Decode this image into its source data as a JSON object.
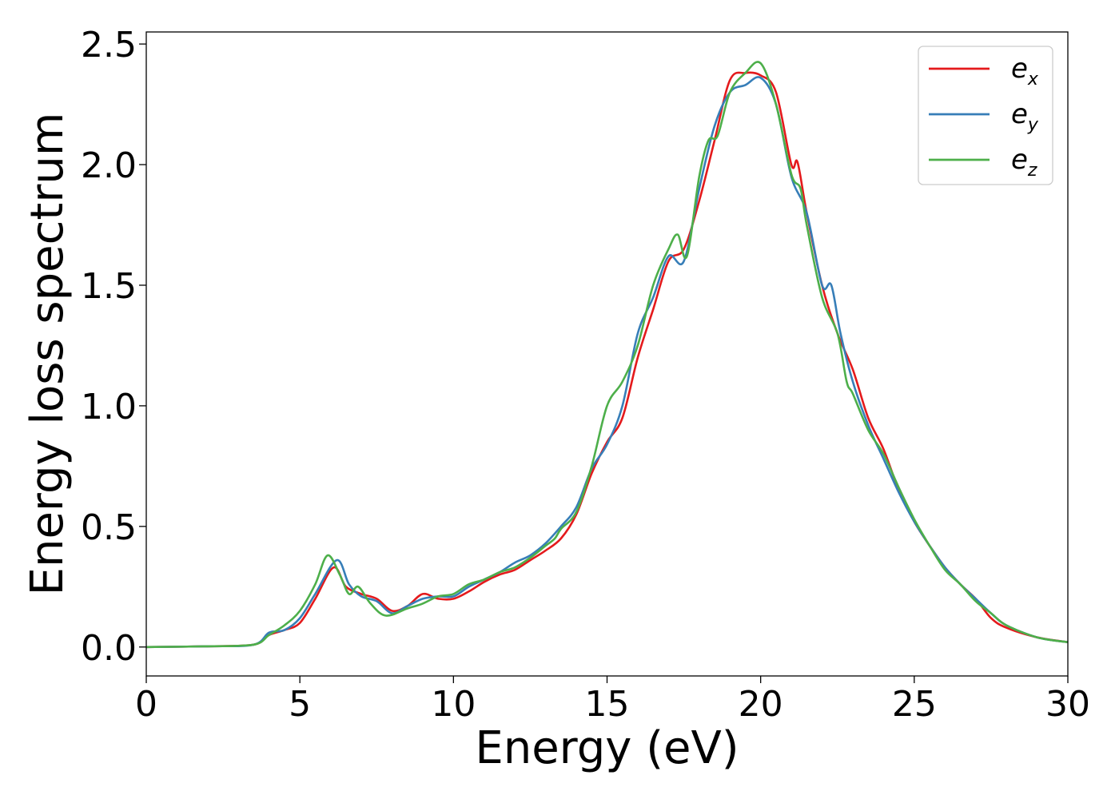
{
  "chart_data": {
    "type": "line",
    "title": "",
    "xlabel": "Energy (eV)",
    "ylabel": "Energy loss spectrum",
    "xlim": [
      0,
      30
    ],
    "ylim": [
      -0.12,
      2.55
    ],
    "x_ticks": [
      "0",
      "5",
      "10",
      "15",
      "20",
      "25",
      "30"
    ],
    "y_ticks": [
      "0.0",
      "0.5",
      "1.0",
      "1.5",
      "2.0",
      "2.5"
    ],
    "grid": false,
    "legend_position": "top-right",
    "series": [
      {
        "name": "e_x",
        "legend_main": "e",
        "legend_sub": "x",
        "color": "#e41a1c",
        "points": [
          [
            0,
            0
          ],
          [
            2,
            0.003
          ],
          [
            3.5,
            0.01
          ],
          [
            4,
            0.05
          ],
          [
            4.5,
            0.07
          ],
          [
            5,
            0.1
          ],
          [
            5.5,
            0.2
          ],
          [
            6.1,
            0.33
          ],
          [
            6.5,
            0.25
          ],
          [
            7,
            0.22
          ],
          [
            7.5,
            0.2
          ],
          [
            8,
            0.15
          ],
          [
            8.5,
            0.17
          ],
          [
            9,
            0.22
          ],
          [
            9.5,
            0.2
          ],
          [
            10,
            0.2
          ],
          [
            10.5,
            0.23
          ],
          [
            11,
            0.27
          ],
          [
            11.5,
            0.3
          ],
          [
            12,
            0.32
          ],
          [
            12.5,
            0.36
          ],
          [
            13,
            0.4
          ],
          [
            13.5,
            0.45
          ],
          [
            14,
            0.55
          ],
          [
            14.5,
            0.72
          ],
          [
            15,
            0.85
          ],
          [
            15.5,
            0.95
          ],
          [
            16,
            1.2
          ],
          [
            16.5,
            1.4
          ],
          [
            17,
            1.6
          ],
          [
            17.5,
            1.65
          ],
          [
            18,
            1.85
          ],
          [
            18.5,
            2.1
          ],
          [
            19,
            2.35
          ],
          [
            19.5,
            2.38
          ],
          [
            20,
            2.37
          ],
          [
            20.5,
            2.3
          ],
          [
            21,
            2.0
          ],
          [
            21.2,
            2.01
          ],
          [
            21.5,
            1.8
          ],
          [
            22,
            1.5
          ],
          [
            22.5,
            1.3
          ],
          [
            23,
            1.15
          ],
          [
            23.5,
            0.95
          ],
          [
            24,
            0.82
          ],
          [
            24.5,
            0.65
          ],
          [
            25,
            0.52
          ],
          [
            25.5,
            0.42
          ],
          [
            26,
            0.33
          ],
          [
            26.5,
            0.26
          ],
          [
            27,
            0.2
          ],
          [
            27.5,
            0.12
          ],
          [
            28,
            0.08
          ],
          [
            29,
            0.04
          ],
          [
            30,
            0.02
          ]
        ]
      },
      {
        "name": "e_y",
        "legend_main": "e",
        "legend_sub": "y",
        "color": "#377eb8",
        "points": [
          [
            0,
            0
          ],
          [
            2,
            0.003
          ],
          [
            3.5,
            0.01
          ],
          [
            4,
            0.06
          ],
          [
            4.5,
            0.07
          ],
          [
            5,
            0.12
          ],
          [
            5.5,
            0.22
          ],
          [
            6.2,
            0.36
          ],
          [
            6.6,
            0.26
          ],
          [
            7,
            0.21
          ],
          [
            7.5,
            0.19
          ],
          [
            8,
            0.14
          ],
          [
            8.5,
            0.17
          ],
          [
            9,
            0.2
          ],
          [
            9.5,
            0.21
          ],
          [
            10,
            0.21
          ],
          [
            10.5,
            0.25
          ],
          [
            11,
            0.28
          ],
          [
            11.5,
            0.31
          ],
          [
            12,
            0.35
          ],
          [
            12.5,
            0.38
          ],
          [
            13,
            0.43
          ],
          [
            13.5,
            0.5
          ],
          [
            14,
            0.58
          ],
          [
            14.5,
            0.74
          ],
          [
            15,
            0.84
          ],
          [
            15.5,
            1.0
          ],
          [
            16,
            1.3
          ],
          [
            16.5,
            1.45
          ],
          [
            17,
            1.62
          ],
          [
            17.5,
            1.6
          ],
          [
            18,
            1.9
          ],
          [
            18.5,
            2.16
          ],
          [
            19,
            2.3
          ],
          [
            19.5,
            2.33
          ],
          [
            20,
            2.36
          ],
          [
            20.5,
            2.25
          ],
          [
            21,
            1.95
          ],
          [
            21.5,
            1.8
          ],
          [
            22,
            1.5
          ],
          [
            22.3,
            1.5
          ],
          [
            22.6,
            1.3
          ],
          [
            23,
            1.1
          ],
          [
            23.5,
            0.92
          ],
          [
            24,
            0.78
          ],
          [
            24.5,
            0.64
          ],
          [
            25,
            0.52
          ],
          [
            25.5,
            0.42
          ],
          [
            26,
            0.33
          ],
          [
            26.5,
            0.26
          ],
          [
            27,
            0.2
          ],
          [
            27.5,
            0.14
          ],
          [
            28,
            0.09
          ],
          [
            29,
            0.04
          ],
          [
            30,
            0.02
          ]
        ]
      },
      {
        "name": "e_z",
        "legend_main": "e",
        "legend_sub": "z",
        "color": "#4daf4a",
        "points": [
          [
            0,
            0
          ],
          [
            2,
            0.003
          ],
          [
            3.5,
            0.01
          ],
          [
            4,
            0.05
          ],
          [
            4.5,
            0.09
          ],
          [
            5,
            0.15
          ],
          [
            5.5,
            0.26
          ],
          [
            5.9,
            0.38
          ],
          [
            6.3,
            0.3
          ],
          [
            6.6,
            0.22
          ],
          [
            6.9,
            0.25
          ],
          [
            7.3,
            0.18
          ],
          [
            7.8,
            0.13
          ],
          [
            8.5,
            0.16
          ],
          [
            9,
            0.18
          ],
          [
            9.5,
            0.21
          ],
          [
            10,
            0.22
          ],
          [
            10.5,
            0.26
          ],
          [
            11,
            0.28
          ],
          [
            11.5,
            0.31
          ],
          [
            12,
            0.33
          ],
          [
            12.5,
            0.37
          ],
          [
            13,
            0.42
          ],
          [
            13.3,
            0.45
          ],
          [
            13.5,
            0.49
          ],
          [
            14,
            0.56
          ],
          [
            14.5,
            0.75
          ],
          [
            15,
            1.0
          ],
          [
            15.5,
            1.1
          ],
          [
            16,
            1.25
          ],
          [
            16.5,
            1.5
          ],
          [
            17,
            1.65
          ],
          [
            17.3,
            1.71
          ],
          [
            17.6,
            1.62
          ],
          [
            18,
            1.95
          ],
          [
            18.3,
            2.1
          ],
          [
            18.6,
            2.12
          ],
          [
            19,
            2.3
          ],
          [
            19.5,
            2.38
          ],
          [
            20,
            2.42
          ],
          [
            20.5,
            2.25
          ],
          [
            21,
            1.96
          ],
          [
            21.3,
            1.9
          ],
          [
            21.5,
            1.75
          ],
          [
            22,
            1.45
          ],
          [
            22.5,
            1.3
          ],
          [
            22.8,
            1.1
          ],
          [
            23,
            1.05
          ],
          [
            23.5,
            0.9
          ],
          [
            24,
            0.8
          ],
          [
            24.5,
            0.66
          ],
          [
            25,
            0.53
          ],
          [
            25.5,
            0.42
          ],
          [
            26,
            0.32
          ],
          [
            26.5,
            0.26
          ],
          [
            27,
            0.19
          ],
          [
            27.5,
            0.14
          ],
          [
            28,
            0.09
          ],
          [
            29,
            0.04
          ],
          [
            30,
            0.02
          ]
        ]
      }
    ]
  }
}
